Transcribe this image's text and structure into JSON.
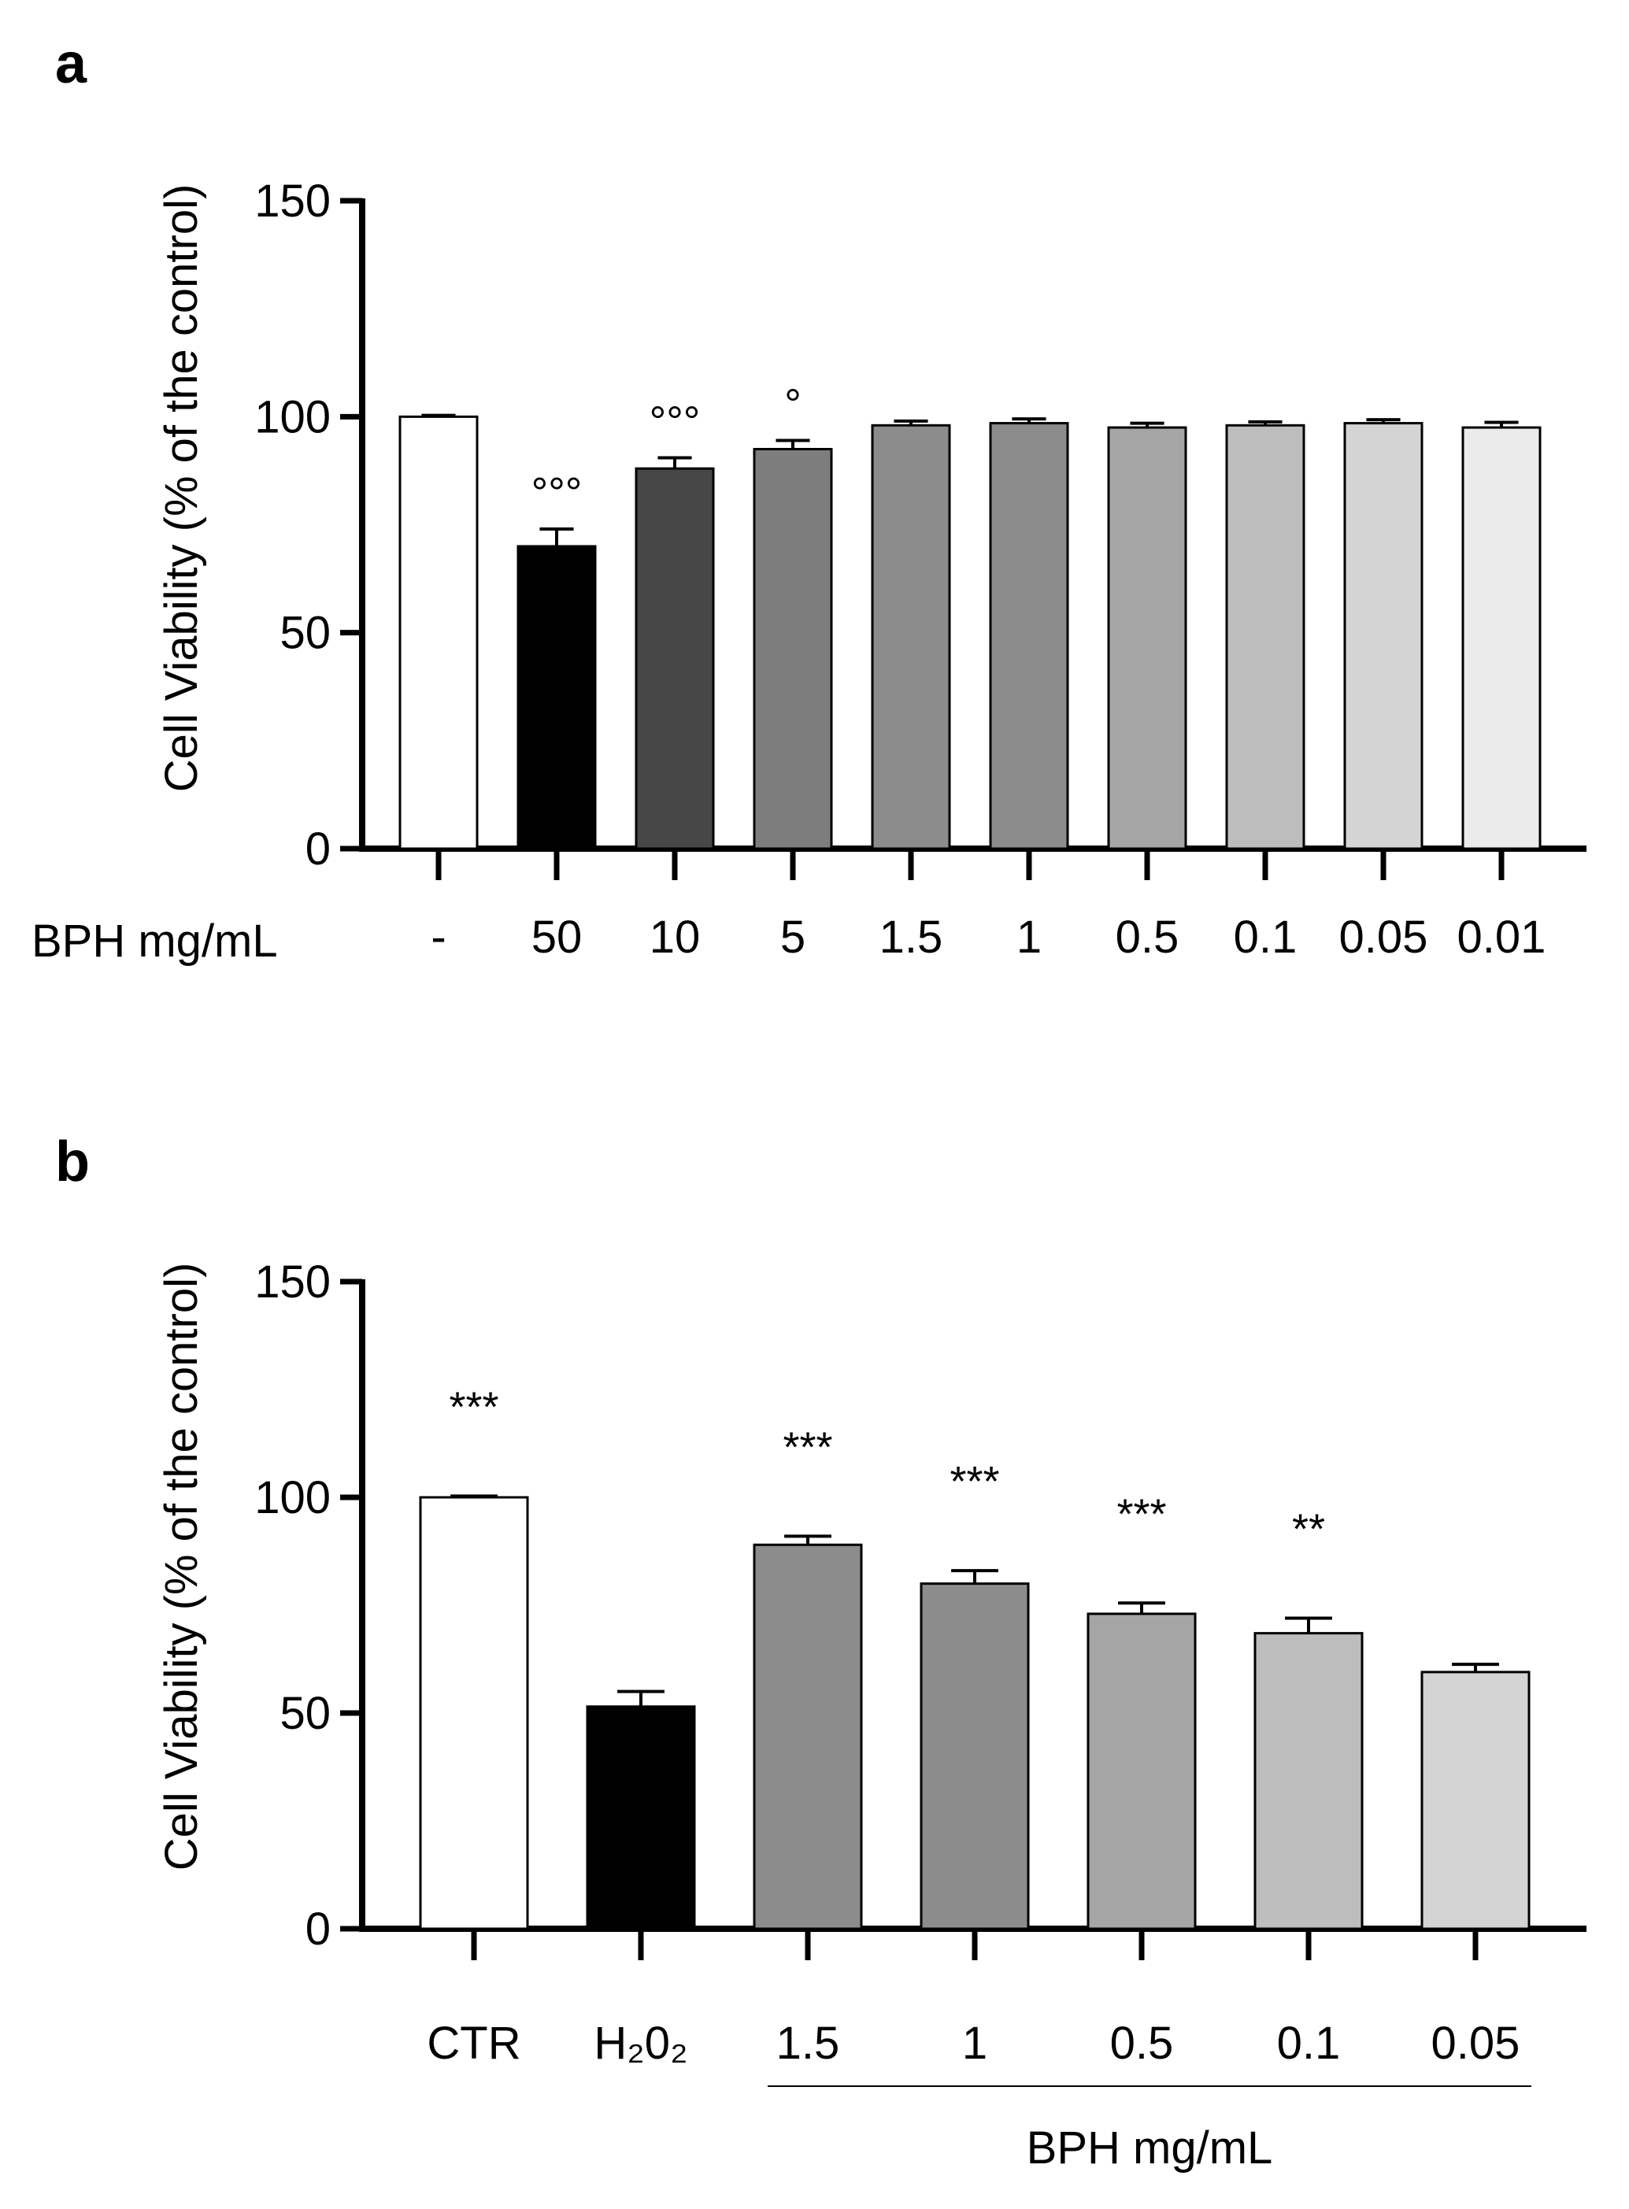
{
  "chart_data": [
    {
      "type": "bar",
      "panel_label": "a",
      "ylabel": "Cell Viability (% of the control)",
      "xlabel": "BPH mg/mL",
      "ylim": [
        0,
        150
      ],
      "yticks": [
        0,
        50,
        100,
        150
      ],
      "categories": [
        "-",
        "50",
        "10",
        "5",
        "1.5",
        "1",
        "0.5",
        "0.1",
        "0.05",
        "0.01"
      ],
      "values": [
        100,
        70,
        88,
        92.5,
        98,
        98.5,
        97.5,
        98,
        98.5,
        97.5
      ],
      "errors": [
        0.3,
        4,
        2.5,
        2,
        1,
        1,
        1,
        0.8,
        0.8,
        1.2
      ],
      "colors": [
        "#ffffff",
        "#000000",
        "#474747",
        "#7d7d7d",
        "#8c8c8c",
        "#8c8c8c",
        "#a5a5a5",
        "#bdbdbd",
        "#d4d4d4",
        "#ebebeb"
      ],
      "annotations": [
        "",
        "°°°",
        "°°°",
        "°",
        "",
        "",
        "",
        "",
        "",
        ""
      ]
    },
    {
      "type": "bar",
      "panel_label": "b",
      "ylabel": "Cell Viability (% of the control)",
      "group_label": "BPH mg/mL",
      "ylim": [
        0,
        150
      ],
      "yticks": [
        0,
        50,
        100,
        150
      ],
      "categories": [
        "CTR",
        "H₂0₂",
        "1.5",
        "1",
        "0.5",
        "0.1",
        "0.05"
      ],
      "values": [
        100,
        51.5,
        89,
        80,
        73,
        68.5,
        59.5
      ],
      "errors": [
        0.3,
        3.5,
        2,
        3,
        2.5,
        3.5,
        1.8
      ],
      "colors": [
        "#ffffff",
        "#000000",
        "#8c8c8c",
        "#8c8c8c",
        "#a5a5a5",
        "#bdbdbd",
        "#d4d4d4"
      ],
      "annotations": [
        "***",
        "",
        "***",
        "***",
        "***",
        "**",
        ""
      ]
    }
  ]
}
